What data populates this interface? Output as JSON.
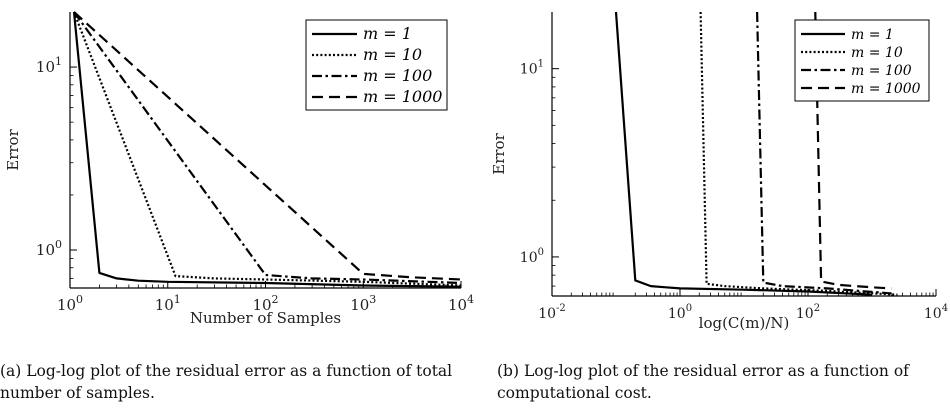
{
  "chart_data": [
    {
      "type": "line",
      "xlabel": "Number of Samples",
      "ylabel": "Error",
      "xscale": "log",
      "yscale": "log",
      "xlim": [
        1,
        10000
      ],
      "ylim": [
        0.62,
        20
      ],
      "x_ticks": [
        {
          "value": 1,
          "base": "10",
          "exp": "0"
        },
        {
          "value": 10,
          "base": "10",
          "exp": "1"
        },
        {
          "value": 100,
          "base": "10",
          "exp": "2"
        },
        {
          "value": 1000,
          "base": "10",
          "exp": "3"
        },
        {
          "value": 10000,
          "base": "10",
          "exp": "4"
        }
      ],
      "y_ticks": [
        {
          "value": 1,
          "base": "10",
          "exp": "0"
        },
        {
          "value": 10,
          "base": "10",
          "exp": "1"
        }
      ],
      "legend_position": "top-right",
      "series": [
        {
          "name": "m = 1",
          "style": "solid",
          "points": [
            [
              1.1,
              20
            ],
            [
              2,
              0.75
            ],
            [
              3,
              0.7
            ],
            [
              5,
              0.68
            ],
            [
              10,
              0.67
            ],
            [
              100,
              0.66
            ],
            [
              1000,
              0.64
            ],
            [
              10000,
              0.63
            ]
          ]
        },
        {
          "name": "m = 10",
          "style": "dotted",
          "points": [
            [
              1.1,
              20
            ],
            [
              12,
              0.72
            ],
            [
              30,
              0.7
            ],
            [
              100,
              0.69
            ],
            [
              1000,
              0.67
            ],
            [
              10000,
              0.64
            ]
          ]
        },
        {
          "name": "m = 100",
          "style": "dashdot",
          "points": [
            [
              1.1,
              20
            ],
            [
              100,
              0.73
            ],
            [
              300,
              0.7
            ],
            [
              1000,
              0.69
            ],
            [
              10000,
              0.66
            ]
          ]
        },
        {
          "name": "m = 1000",
          "style": "dashed",
          "points": [
            [
              1.1,
              20
            ],
            [
              1000,
              0.74
            ],
            [
              3000,
              0.71
            ],
            [
              10000,
              0.69
            ]
          ]
        }
      ]
    },
    {
      "type": "line",
      "xlabel": "log(C(m)/N)",
      "ylabel": "Error",
      "xscale": "log",
      "yscale": "log",
      "xlim": [
        0.01,
        10000
      ],
      "ylim": [
        0.62,
        20
      ],
      "x_ticks": [
        {
          "value": 0.01,
          "base": "10",
          "exp": "-2"
        },
        {
          "value": 1,
          "base": "10",
          "exp": "0"
        },
        {
          "value": 100,
          "base": "10",
          "exp": "2"
        },
        {
          "value": 10000,
          "base": "10",
          "exp": "4"
        }
      ],
      "y_ticks": [
        {
          "value": 1,
          "base": "10",
          "exp": "0"
        },
        {
          "value": 10,
          "base": "10",
          "exp": "1"
        }
      ],
      "legend_position": "top-right",
      "series": [
        {
          "name": "m = 1",
          "style": "solid",
          "points": [
            [
              0.1,
              20
            ],
            [
              0.2,
              0.75
            ],
            [
              0.35,
              0.7
            ],
            [
              0.6,
              0.69
            ],
            [
              1,
              0.68
            ],
            [
              10,
              0.67
            ],
            [
              100,
              0.655
            ],
            [
              1000,
              0.63
            ]
          ]
        },
        {
          "name": "m = 10",
          "style": "dotted",
          "points": [
            [
              2.1,
              20
            ],
            [
              2.6,
              0.72
            ],
            [
              5,
              0.7
            ],
            [
              20,
              0.68
            ],
            [
              200,
              0.66
            ],
            [
              2500,
              0.63
            ]
          ]
        },
        {
          "name": "m = 100",
          "style": "dashdot",
          "points": [
            [
              16,
              20
            ],
            [
              20,
              0.73
            ],
            [
              40,
              0.7
            ],
            [
              200,
              0.68
            ],
            [
              2000,
              0.64
            ]
          ]
        },
        {
          "name": "m = 1000",
          "style": "dashed",
          "points": [
            [
              130,
              20
            ],
            [
              160,
              0.74
            ],
            [
              300,
              0.71
            ],
            [
              1000,
              0.69
            ],
            [
              2000,
              0.68
            ]
          ]
        }
      ]
    }
  ],
  "captions": {
    "a": "(a) Log-log plot of the residual error as a function of total number of samples.",
    "b": "(b) Log-log plot of the residual error as a function of computational cost."
  }
}
